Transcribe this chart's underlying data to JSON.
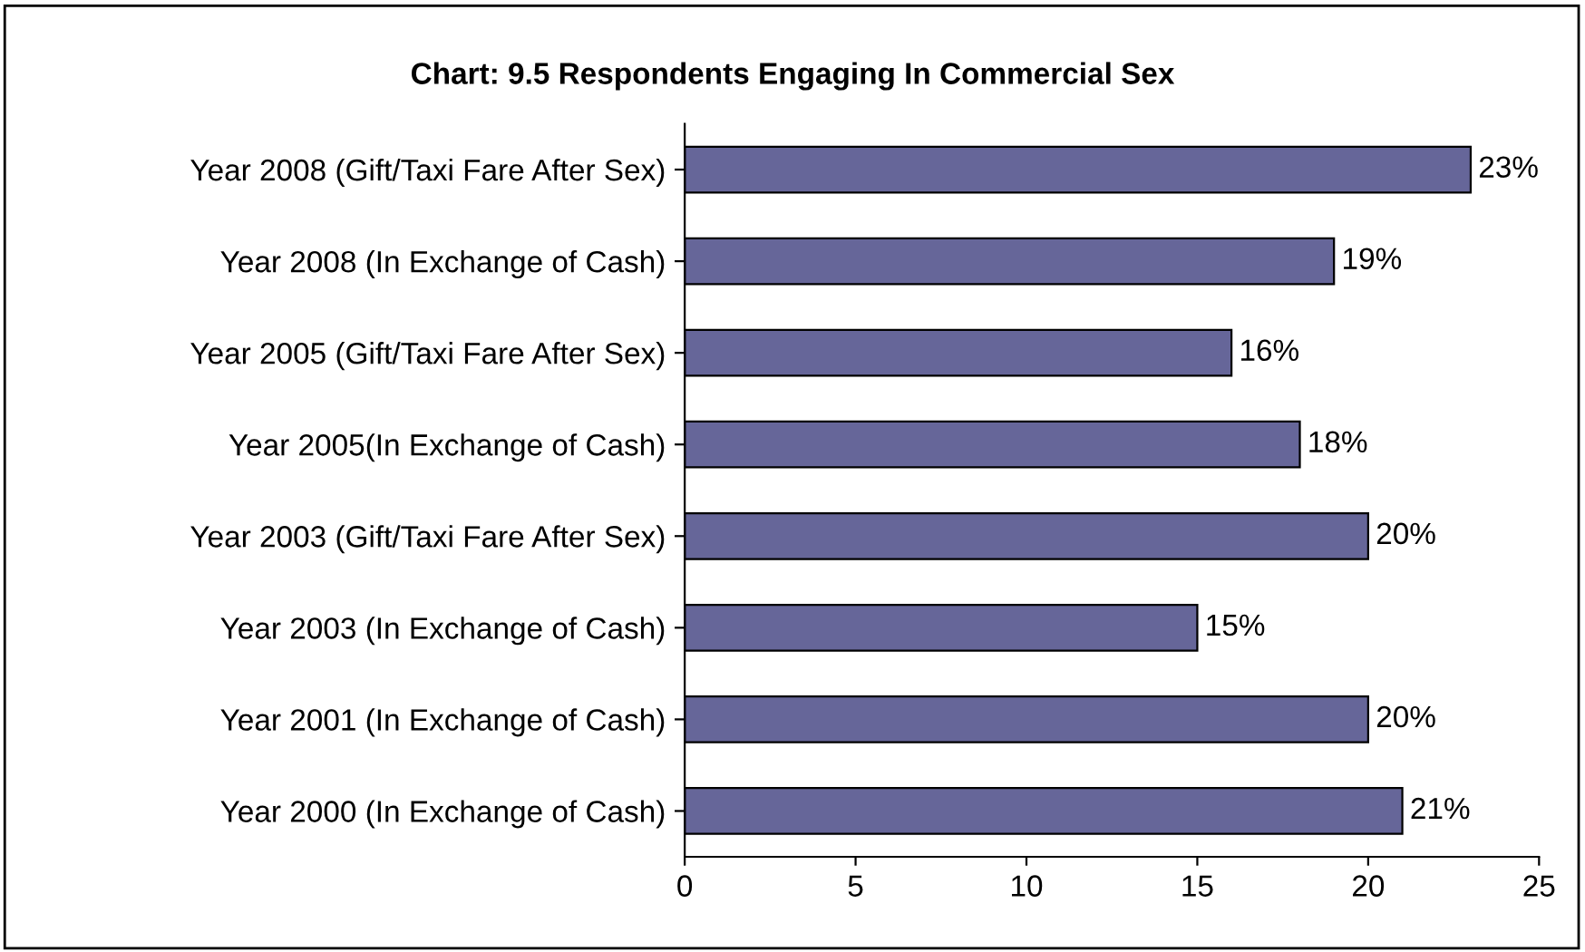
{
  "chart_data": {
    "type": "bar",
    "orientation": "horizontal",
    "title": "Chart: 9.5 Respondents Engaging In Commercial Sex",
    "categories": [
      "Year 2008 (Gift/Taxi Fare After Sex)",
      "Year 2008 (In Exchange of Cash)",
      "Year 2005 (Gift/Taxi Fare After Sex)",
      "Year 2005(In Exchange of Cash)",
      "Year 2003 (Gift/Taxi Fare After Sex)",
      "Year 2003 (In Exchange of Cash)",
      "Year 2001 (In Exchange of Cash)",
      "Year 2000 (In Exchange of Cash)"
    ],
    "values": [
      23,
      19,
      16,
      18,
      20,
      15,
      20,
      21
    ],
    "value_labels": [
      "23%",
      "19%",
      "16%",
      "18%",
      "20%",
      "15%",
      "20%",
      "21%"
    ],
    "color": "#666699",
    "xlim": [
      0,
      25
    ],
    "xticks": [
      0,
      5,
      10,
      15,
      20,
      25
    ],
    "grid": false,
    "legend": false
  }
}
